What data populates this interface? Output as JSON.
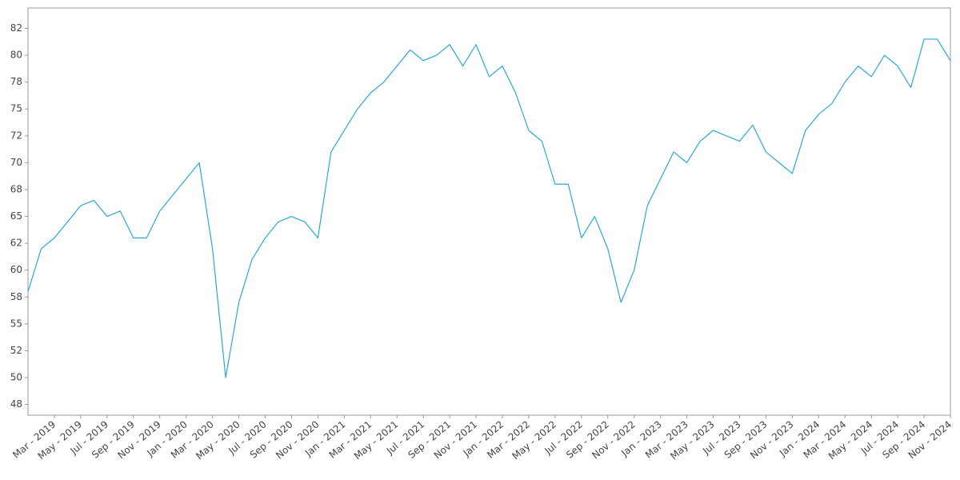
{
  "chart_data": {
    "type": "line",
    "x": [
      "2019-01",
      "2019-02",
      "2019-03",
      "2019-04",
      "2019-05",
      "2019-06",
      "2019-07",
      "2019-08",
      "2019-09",
      "2019-10",
      "2019-11",
      "2019-12",
      "2020-01",
      "2020-02",
      "2020-03",
      "2020-04",
      "2020-05",
      "2020-06",
      "2020-07",
      "2020-08",
      "2020-09",
      "2020-10",
      "2020-11",
      "2020-12",
      "2021-01",
      "2021-02",
      "2021-03",
      "2021-04",
      "2021-05",
      "2021-06",
      "2021-07",
      "2021-08",
      "2021-09",
      "2021-10",
      "2021-11",
      "2021-12",
      "2022-01",
      "2022-02",
      "2022-03",
      "2022-04",
      "2022-05",
      "2022-06",
      "2022-07",
      "2022-08",
      "2022-09",
      "2022-10",
      "2022-11",
      "2022-12",
      "2023-01",
      "2023-02",
      "2023-03",
      "2023-04",
      "2023-05",
      "2023-06",
      "2023-07",
      "2023-08",
      "2023-09",
      "2023-10",
      "2023-11",
      "2023-12",
      "2024-01",
      "2024-02",
      "2024-03",
      "2024-04",
      "2024-05",
      "2024-06",
      "2024-07",
      "2024-08",
      "2024-09",
      "2024-10",
      "2024-11"
    ],
    "series": [
      {
        "color": "#29a8d8",
        "values": [
          58,
          62,
          63,
          64.5,
          66,
          66.5,
          65,
          65.5,
          63,
          63,
          65.5,
          67,
          68.5,
          70,
          62,
          50,
          57,
          61,
          63,
          64.5,
          65,
          64.5,
          63,
          71,
          73,
          75,
          76.5,
          77.5,
          79,
          80.5,
          79.5,
          80,
          81,
          79,
          81,
          78,
          79,
          76.5,
          73,
          72,
          68,
          68,
          63,
          65,
          62,
          57,
          60,
          66,
          68.5,
          71,
          70,
          72,
          73,
          72.5,
          72,
          73.5,
          71,
          70,
          69,
          73,
          74.5,
          75.5,
          77.5,
          79,
          78,
          80,
          79,
          77,
          81.5,
          81.5,
          79.5
        ]
      }
    ],
    "xlim": [
      "2019-01",
      "2024-11"
    ],
    "xticks": [
      {
        "value": "2019-03",
        "label": "Mar - 2019"
      },
      {
        "value": "2019-05",
        "label": "May - 2019"
      },
      {
        "value": "2019-07",
        "label": "Jul - 2019"
      },
      {
        "value": "2019-09",
        "label": "Sep - 2019"
      },
      {
        "value": "2019-11",
        "label": "Nov - 2019"
      },
      {
        "value": "2020-01",
        "label": "Jan - 2020"
      },
      {
        "value": "2020-03",
        "label": "Mar - 2020"
      },
      {
        "value": "2020-05",
        "label": "May - 2020"
      },
      {
        "value": "2020-07",
        "label": "Jul - 2020"
      },
      {
        "value": "2020-09",
        "label": "Sep - 2020"
      },
      {
        "value": "2020-11",
        "label": "Nov - 2020"
      },
      {
        "value": "2021-01",
        "label": "Jan - 2021"
      },
      {
        "value": "2021-03",
        "label": "Mar - 2021"
      },
      {
        "value": "2021-05",
        "label": "May - 2021"
      },
      {
        "value": "2021-07",
        "label": "Jul - 2021"
      },
      {
        "value": "2021-09",
        "label": "Sep - 2021"
      },
      {
        "value": "2021-11",
        "label": "Nov - 2021"
      },
      {
        "value": "2022-01",
        "label": "Jan - 2022"
      },
      {
        "value": "2022-03",
        "label": "Mar - 2022"
      },
      {
        "value": "2022-05",
        "label": "May - 2022"
      },
      {
        "value": "2022-07",
        "label": "Jul - 2022"
      },
      {
        "value": "2022-09",
        "label": "Sep - 2022"
      },
      {
        "value": "2022-11",
        "label": "Nov - 2022"
      },
      {
        "value": "2023-01",
        "label": "Jan - 2023"
      },
      {
        "value": "2023-03",
        "label": "Mar - 2023"
      },
      {
        "value": "2023-05",
        "label": "May - 2023"
      },
      {
        "value": "2023-07",
        "label": "Jul - 2023"
      },
      {
        "value": "2023-09",
        "label": "Sep - 2023"
      },
      {
        "value": "2023-11",
        "label": "Nov - 2023"
      },
      {
        "value": "2024-01",
        "label": "Jan - 2024"
      },
      {
        "value": "2024-03",
        "label": "Mar - 2024"
      },
      {
        "value": "2024-05",
        "label": "May - 2024"
      },
      {
        "value": "2024-07",
        "label": "Jul - 2024"
      },
      {
        "value": "2024-09",
        "label": "Sep - 2024"
      },
      {
        "value": "2024-11",
        "label": "Nov - 2024"
      }
    ],
    "ylim": [
      46.5,
      84.4
    ],
    "yticks": [
      {
        "value": 47.5,
        "label": "48"
      },
      50,
      {
        "value": 52.5,
        "label": "52"
      },
      55,
      {
        "value": 57.5,
        "label": "58"
      },
      60,
      {
        "value": 62.5,
        "label": "62"
      },
      65,
      {
        "value": 67.5,
        "label": "68"
      },
      70,
      {
        "value": 72.5,
        "label": "72"
      },
      75,
      {
        "value": 77.5,
        "label": "78"
      },
      80,
      {
        "value": 82.5,
        "label": "82"
      }
    ],
    "grid": false
  }
}
